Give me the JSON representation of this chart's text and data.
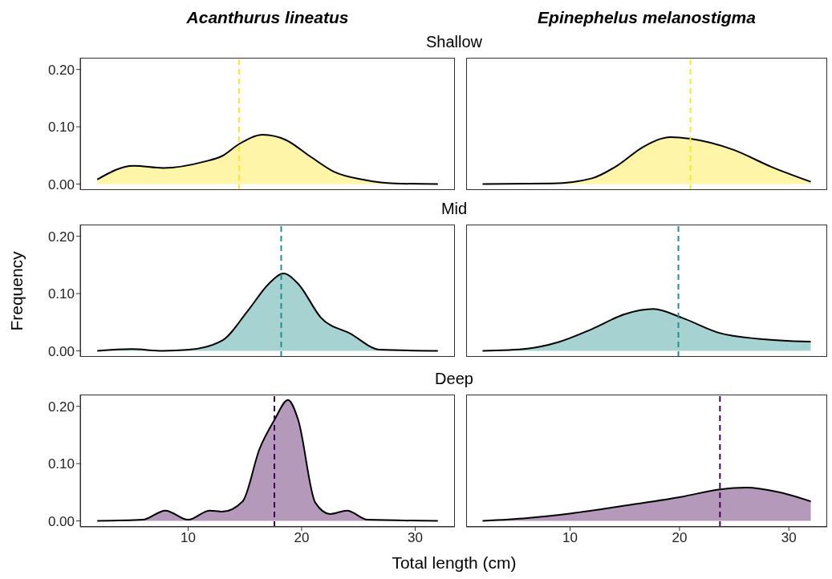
{
  "chart_data": [
    {
      "type": "area",
      "title": "Acanthurus lineatus",
      "subtitle": "Shallow",
      "x": [
        2,
        5.2,
        7.8,
        11.4,
        13,
        14.5,
        16.6,
        18.6,
        20.7,
        22.8,
        25.6,
        28.2,
        32
      ],
      "values": [
        0.008,
        0.032,
        0.028,
        0.039,
        0.049,
        0.07,
        0.086,
        0.077,
        0.049,
        0.022,
        0.007,
        0.001,
        0
      ],
      "color": "#fef5a8",
      "xlim": [
        0.5,
        33.5
      ],
      "ylim": [
        -0.0105,
        0.2205
      ],
      "yticks": [
        {
          "value": 0,
          "label": "0.00"
        },
        {
          "value": 0.1,
          "label": "0.10"
        },
        {
          "value": 0.2,
          "label": "0.20"
        }
      ],
      "tick_labels": "y",
      "ref_lines": [
        {
          "axis": "x",
          "value": 14.5,
          "color": "#fde725",
          "line_style": "dashed"
        }
      ]
    },
    {
      "type": "area",
      "title": "Epinephelus melanostigma",
      "x": [
        2,
        8.4,
        12,
        14.3,
        16.7,
        19.2,
        21,
        24.9,
        28.4,
        32
      ],
      "values": [
        0,
        0.001,
        0.01,
        0.032,
        0.065,
        0.082,
        0.079,
        0.06,
        0.03,
        0.004
      ],
      "color": "#fef5a8",
      "xlim": [
        0.5,
        33.5
      ],
      "ylim": [
        -0.0105,
        0.2205
      ],
      "tick_labels": false,
      "ref_lines": [
        {
          "axis": "x",
          "value": 21,
          "color": "#fde725",
          "line_style": "dashed"
        }
      ]
    },
    {
      "type": "area",
      "subtitle": "Mid",
      "ylabel": "Frequency",
      "x": [
        2,
        5,
        7.8,
        10.1,
        13,
        15.3,
        17.1,
        18.4,
        19.7,
        21.7,
        24.3,
        26.9,
        32
      ],
      "values": [
        0,
        0.003,
        0,
        0.002,
        0.018,
        0.071,
        0.117,
        0.135,
        0.117,
        0.058,
        0.03,
        0.002,
        0
      ],
      "color": "#a6d3d1",
      "xlim": [
        0.5,
        33.5
      ],
      "ylim": [
        -0.0105,
        0.2205
      ],
      "yticks": [
        {
          "value": 0,
          "label": "0.00"
        },
        {
          "value": 0.1,
          "label": "0.10"
        },
        {
          "value": 0.2,
          "label": "0.20"
        }
      ],
      "tick_labels": "y",
      "ref_lines": [
        {
          "axis": "x",
          "value": 18.2,
          "color": "#21918c",
          "line_style": "dashed"
        }
      ]
    },
    {
      "type": "area",
      "x": [
        2,
        6.1,
        8.9,
        12,
        15,
        17.6,
        20.2,
        23.7,
        27.2,
        32
      ],
      "values": [
        0,
        0.004,
        0.015,
        0.038,
        0.064,
        0.073,
        0.058,
        0.031,
        0.021,
        0.016
      ],
      "color": "#a6d3d1",
      "xlim": [
        0.5,
        33.5
      ],
      "ylim": [
        -0.0105,
        0.2205
      ],
      "tick_labels": false,
      "ref_lines": [
        {
          "axis": "x",
          "value": 19.9,
          "color": "#21918c",
          "line_style": "dashed"
        }
      ]
    },
    {
      "type": "area",
      "subtitle": "Deep",
      "xlabel": "Total length (cm)",
      "x": [
        2,
        6,
        8,
        10,
        11.9,
        13,
        14.8,
        16.3,
        17.6,
        18.8,
        19.7,
        21.2,
        22.5,
        24,
        25.8,
        32
      ],
      "values": [
        0,
        0.002,
        0.018,
        0.002,
        0.018,
        0.016,
        0.034,
        0.126,
        0.176,
        0.211,
        0.176,
        0.032,
        0.012,
        0.018,
        0.002,
        0
      ],
      "color": "#b499bb",
      "xlim": [
        0.5,
        33.5
      ],
      "ylim": [
        -0.0105,
        0.2205
      ],
      "xticks": [
        10,
        20,
        30
      ],
      "yticks": [
        {
          "value": 0,
          "label": "0.00"
        },
        {
          "value": 0.1,
          "label": "0.10"
        },
        {
          "value": 0.2,
          "label": "0.20"
        }
      ],
      "ref_lines": [
        {
          "axis": "x",
          "value": 17.6,
          "color": "#440154",
          "line_style": "dashed"
        }
      ]
    },
    {
      "type": "area",
      "x": [
        2,
        6.1,
        10.1,
        15.5,
        20.2,
        23.7,
        26.1,
        29.1,
        32
      ],
      "values": [
        0,
        0.005,
        0.013,
        0.028,
        0.042,
        0.055,
        0.058,
        0.05,
        0.034
      ],
      "color": "#b499bb",
      "xlim": [
        0.5,
        33.5
      ],
      "ylim": [
        -0.0105,
        0.2205
      ],
      "xticks": [
        10,
        20,
        30
      ],
      "tick_labels": "x",
      "ref_lines": [
        {
          "axis": "x",
          "value": 23.7,
          "color": "#440154",
          "line_style": "dashed"
        }
      ]
    }
  ]
}
